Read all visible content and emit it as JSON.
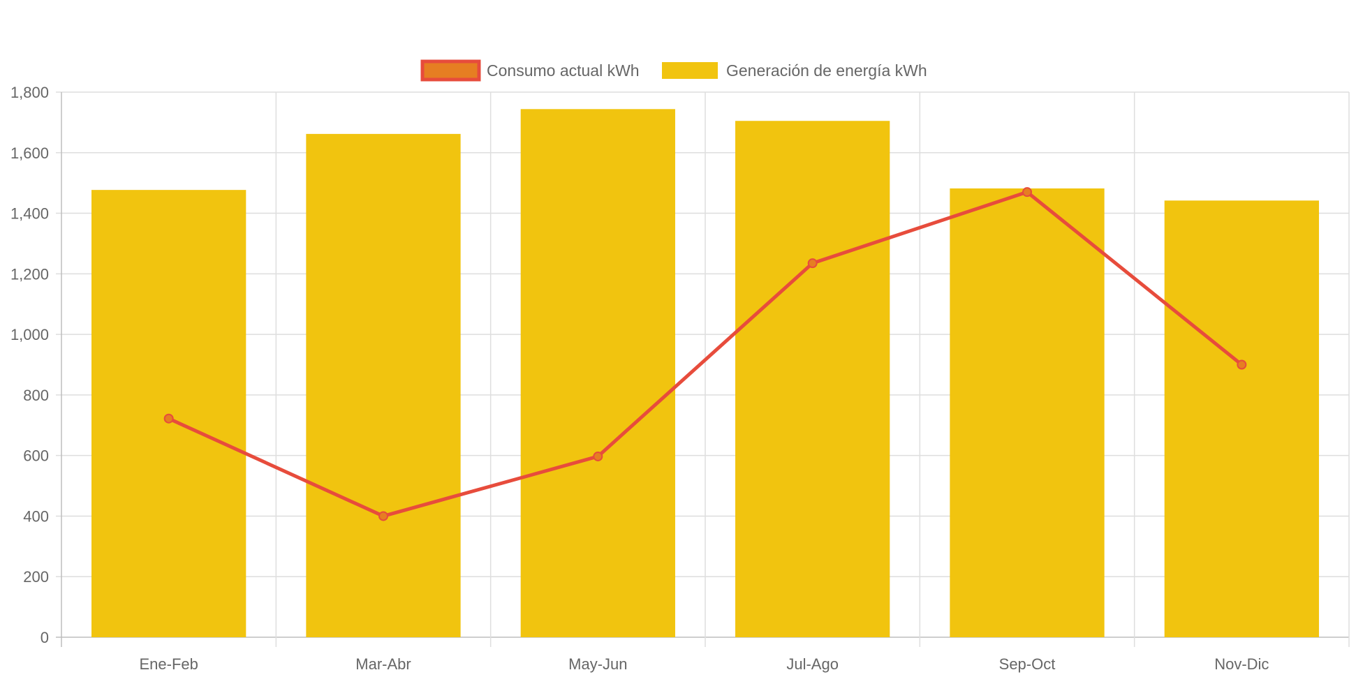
{
  "chart_data": {
    "type": "bar",
    "categories": [
      "Ene-Feb",
      "Mar-Abr",
      "May-Jun",
      "Jul-Ago",
      "Sep-Oct",
      "Nov-Dic"
    ],
    "series": [
      {
        "name": "Consumo actual kWh",
        "type": "line",
        "values": [
          722,
          400,
          597,
          1235,
          1470,
          900
        ],
        "color": "#e74c3c",
        "point_color": "#e67e22"
      },
      {
        "name": "Generación de energía kWh",
        "type": "bar",
        "values": [
          1477,
          1662,
          1744,
          1705,
          1482,
          1442
        ],
        "color": "#f1c40f"
      }
    ],
    "title": "",
    "xlabel": "",
    "ylabel": "",
    "ylim": [
      0,
      1800
    ],
    "yticks": [
      "0",
      "200",
      "400",
      "600",
      "800",
      "1,000",
      "1,200",
      "1,400",
      "1,600",
      "1,800"
    ],
    "grid": true,
    "legend": "top-center"
  }
}
